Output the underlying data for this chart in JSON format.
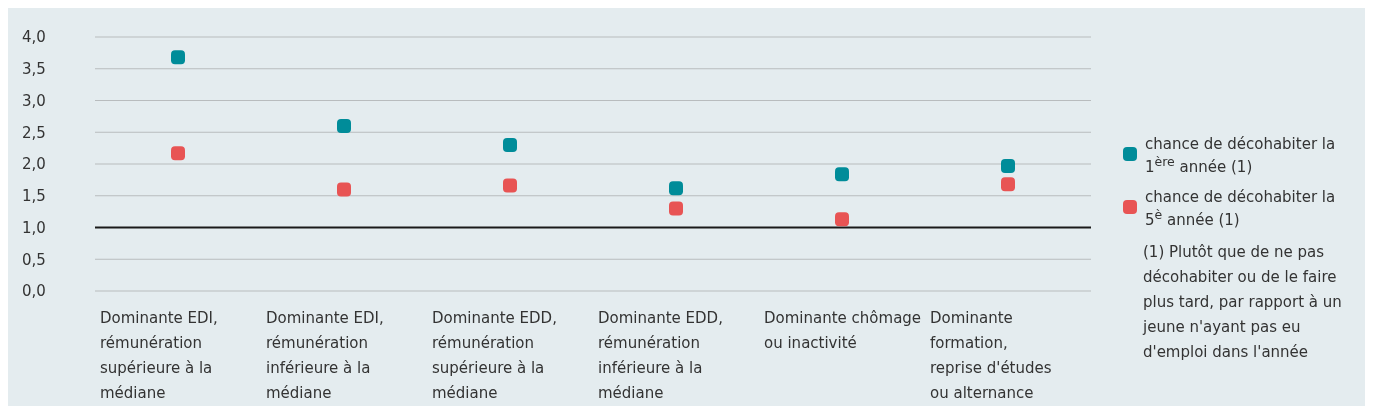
{
  "chart_data": {
    "type": "scatter",
    "categories": [
      "Dominante EDI, rémunération supérieure à la médiane",
      "Dominante EDI, rémunération inférieure à la médiane",
      "Dominante EDD, rémunération supérieure à la médiane",
      "Dominante EDD, rémunération inférieure à la médiane",
      "Dominante chômage ou inactivité",
      "Dominante formation, reprise d'études ou alternance"
    ],
    "series": [
      {
        "name": "chance de décohabiter la 1$^{ère}$ année (1)",
        "color": "#008c99",
        "values": [
          3.68,
          2.6,
          2.3,
          1.62,
          1.84,
          1.97
        ]
      },
      {
        "name": "chance de décohabiter la 5$^{è}$ année (1)",
        "color": "#e85454",
        "values": [
          2.17,
          1.6,
          1.66,
          1.3,
          1.13,
          1.68
        ]
      }
    ],
    "ylim": [
      0,
      4
    ],
    "yticks": [
      {
        "value": 0,
        "label": "0,0"
      },
      {
        "value": 0.5,
        "label": "0,5"
      },
      {
        "value": 1,
        "label": "1,0"
      },
      {
        "value": 1.5,
        "label": "1,5"
      },
      {
        "value": 2,
        "label": "2,0"
      },
      {
        "value": 2.5,
        "label": "2,5"
      },
      {
        "value": 3,
        "label": "3,0"
      },
      {
        "value": 3.5,
        "label": "3,5"
      },
      {
        "value": 4,
        "label": "4,0"
      }
    ],
    "grid": "y",
    "ref_lines": [
      {
        "axis": "y",
        "value": 1,
        "color": "#1a1a1a"
      }
    ],
    "marker": "square",
    "legend": "right",
    "annotations": [
      "(1) Plutôt que de ne pas décohabiter ou de le faire plus tard, par rapport à un jeune n'ayant pas eu d'emploi dans l'année"
    ]
  }
}
